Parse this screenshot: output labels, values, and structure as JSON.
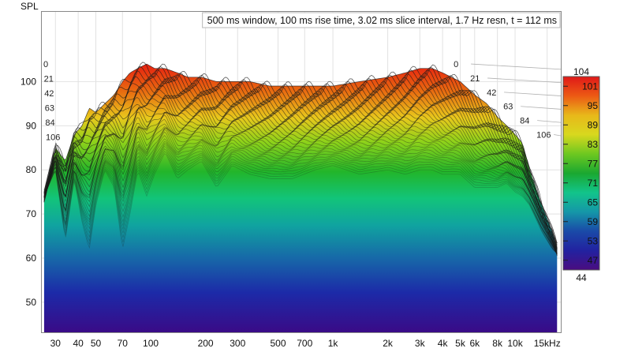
{
  "chart_data": {
    "type": "area",
    "ylabel": "SPL",
    "title": "500 ms window, 100 ms rise time, 3.02 ms slice interval, 1.7 Hz resn, t = 112 ms",
    "x_scale": "log",
    "xlim": [
      25,
      18000
    ],
    "ylim": [
      43,
      116
    ],
    "y_ticks": [
      50,
      60,
      70,
      80,
      90,
      100
    ],
    "x_ticks": [
      {
        "value": 30,
        "label": "30"
      },
      {
        "value": 40,
        "label": "40"
      },
      {
        "value": 50,
        "label": "50"
      },
      {
        "value": 70,
        "label": "70"
      },
      {
        "value": 100,
        "label": "100"
      },
      {
        "value": 200,
        "label": "200"
      },
      {
        "value": 300,
        "label": "300"
      },
      {
        "value": 500,
        "label": "500"
      },
      {
        "value": 700,
        "label": "700"
      },
      {
        "value": 1000,
        "label": "1k"
      },
      {
        "value": 2000,
        "label": "2k"
      },
      {
        "value": 3000,
        "label": "3k"
      },
      {
        "value": 4000,
        "label": "4k"
      },
      {
        "value": 5000,
        "label": "5k"
      },
      {
        "value": 6000,
        "label": "6k"
      },
      {
        "value": 8000,
        "label": "8k"
      },
      {
        "value": 10000,
        "label": "10k"
      },
      {
        "value": 15000,
        "label": "15kHz"
      }
    ],
    "slice_times_ms": [
      "0",
      "21",
      "42",
      "63",
      "84",
      "106"
    ],
    "colorbar": {
      "min": 44,
      "max": 104,
      "ticks": [
        101,
        95,
        89,
        83,
        77,
        71,
        65,
        59,
        53,
        47
      ],
      "min_label": "44",
      "max_label": "104"
    },
    "series": [
      {
        "x": [
          26,
          30,
          34,
          38,
          42,
          46,
          50,
          56,
          63,
          70,
          77,
          85,
          95,
          105,
          120,
          140,
          160,
          190,
          230,
          280,
          350,
          450,
          600,
          800,
          1000,
          1400,
          2000,
          2500,
          3000,
          3500,
          4000,
          5000,
          6000,
          7000,
          8000,
          9000,
          10000,
          11000,
          12000,
          14000,
          16000,
          17000
        ],
        "y": [
          74,
          85,
          82,
          88,
          90,
          94,
          93,
          95,
          97,
          100,
          102,
          103,
          104,
          103,
          103,
          102,
          101,
          101,
          100,
          100,
          100,
          99,
          99,
          99,
          99,
          100,
          101,
          102,
          103,
          103,
          102,
          100,
          97,
          95,
          92,
          90,
          88,
          86,
          80,
          72,
          66,
          62
        ]
      },
      {
        "x": [
          26,
          30,
          34,
          38,
          42,
          46,
          50,
          56,
          63,
          70,
          77,
          85,
          95,
          105,
          120,
          140,
          160,
          190,
          230,
          280,
          350,
          450,
          600,
          800,
          1000,
          1400,
          2000,
          2500,
          3000,
          3500,
          4000,
          5000,
          6000,
          7000,
          8000,
          9000,
          10000,
          11000,
          12000,
          14000,
          16000,
          17000
        ],
        "y": [
          74,
          80,
          64,
          78,
          68,
          62,
          72,
          80,
          76,
          62,
          70,
          80,
          74,
          79,
          84,
          78,
          80,
          82,
          76,
          81,
          79,
          78,
          78,
          80,
          81,
          79,
          80,
          79,
          80,
          80,
          79,
          79,
          76,
          76,
          76,
          77,
          75,
          74,
          72,
          66,
          62,
          61
        ]
      }
    ]
  }
}
